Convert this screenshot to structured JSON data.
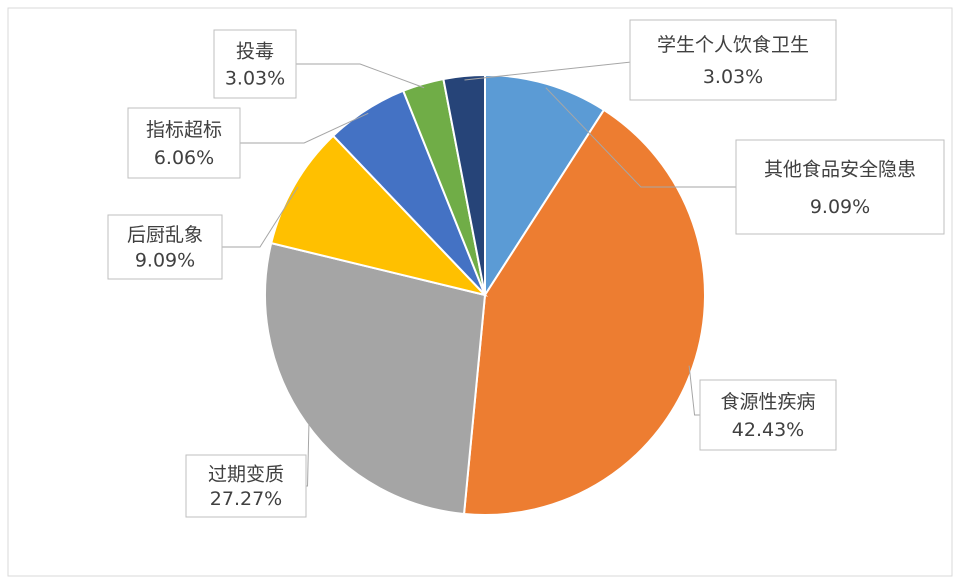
{
  "chart_data": {
    "type": "pie",
    "categories": [
      "其他食品安全隐患",
      "食源性疾病",
      "过期变质",
      "后厨乱象",
      "指标超标",
      "投毒",
      "学生个人饮食卫生"
    ],
    "values": [
      9.09,
      42.43,
      27.27,
      9.09,
      6.06,
      3.03,
      3.03
    ],
    "value_labels": [
      "9.09%",
      "42.43%",
      "27.27%",
      "9.09%",
      "6.06%",
      "3.03%",
      "3.03%"
    ],
    "colors": [
      "#5b9bd5",
      "#ed7d31",
      "#a5a5a5",
      "#ffc000",
      "#4472c4",
      "#70ad47",
      "#264478"
    ]
  }
}
